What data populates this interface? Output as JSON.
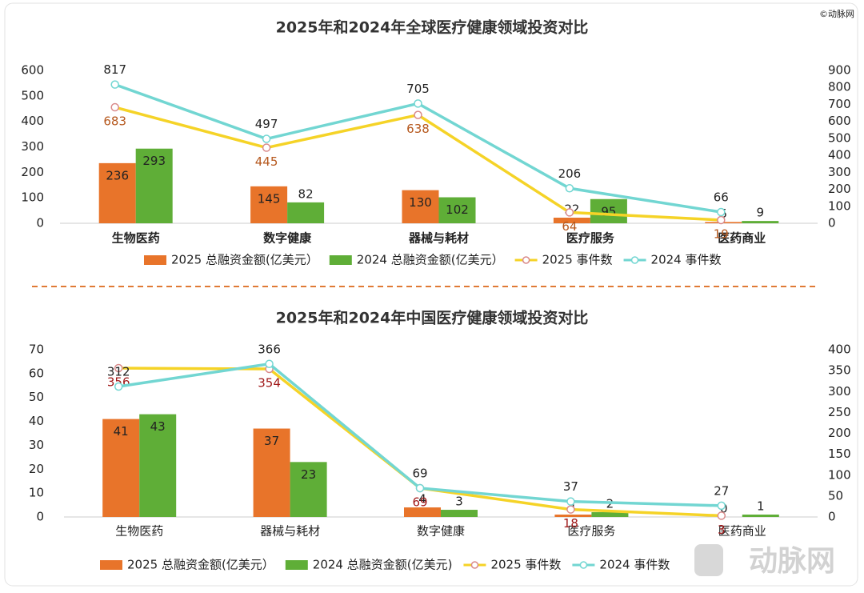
{
  "chart_data": [
    {
      "type": "combo",
      "title": "2025年和2024年全球医疗健康领域投资对比",
      "categories": [
        "生物医药",
        "数字健康",
        "器械与耗材",
        "医疗服务",
        "医药商业"
      ],
      "series": [
        {
          "name": "2025 总融资金额(亿美元）",
          "kind": "bar",
          "color": "#e8742a",
          "values": [
            236,
            145,
            130,
            22,
            5
          ]
        },
        {
          "name": "2024 总融资金额(亿美元）",
          "kind": "bar",
          "color": "#5fae37",
          "values": [
            293,
            82,
            102,
            95,
            9
          ]
        },
        {
          "name": "2025 事件数",
          "kind": "line",
          "axis": "y2",
          "color": "#f5d327",
          "values": [
            683,
            445,
            638,
            64,
            19
          ]
        },
        {
          "name": "2024 事件数",
          "kind": "line",
          "axis": "y2",
          "color": "#72d6d2",
          "values": [
            817,
            497,
            705,
            206,
            66
          ]
        }
      ],
      "ylim": [
        0,
        600
      ],
      "yticks": [
        0,
        100,
        200,
        300,
        400,
        500,
        600
      ],
      "y2lim": [
        0,
        900
      ],
      "y2ticks": [
        0,
        100,
        200,
        300,
        400,
        500,
        600,
        700,
        800,
        900
      ]
    },
    {
      "type": "combo",
      "title": "2025年和2024年中国医疗健康领域投资对比",
      "categories": [
        "生物医药",
        "器械与耗材",
        "数字健康",
        "医疗服务",
        "医药商业"
      ],
      "series": [
        {
          "name": "2025 总融资金额(亿美元）",
          "kind": "bar",
          "color": "#e8742a",
          "values": [
            41,
            37,
            4,
            1,
            0
          ]
        },
        {
          "name": "2024 总融资金额(亿美元)",
          "kind": "bar",
          "color": "#5fae37",
          "values": [
            43,
            23,
            3,
            2,
            1
          ]
        },
        {
          "name": "2025 事件数",
          "kind": "line",
          "axis": "y2",
          "color": "#f5d327",
          "values": [
            356,
            354,
            69,
            18,
            3
          ]
        },
        {
          "name": "2024 事件数",
          "kind": "line",
          "axis": "y2",
          "color": "#72d6d2",
          "values": [
            312,
            366,
            69,
            37,
            27
          ]
        }
      ],
      "ylim": [
        0,
        70
      ],
      "yticks": [
        0,
        10,
        20,
        30,
        40,
        50,
        60,
        70
      ],
      "y2lim": [
        0,
        400
      ],
      "y2ticks": [
        0,
        50,
        100,
        150,
        200,
        250,
        300,
        350,
        400
      ]
    }
  ],
  "watermark": "©动脉网",
  "logo": "动脉网"
}
